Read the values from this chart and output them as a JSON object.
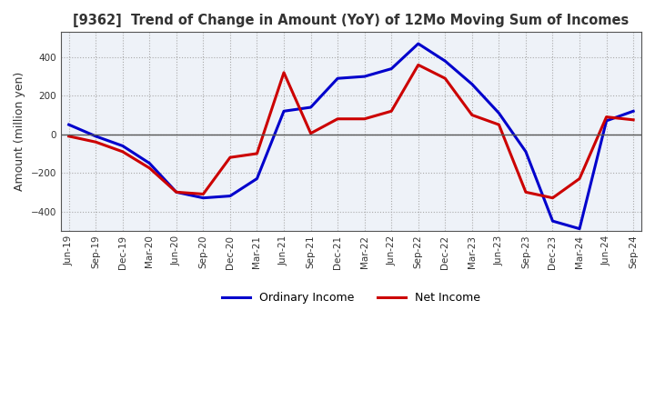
{
  "title": "[9362]  Trend of Change in Amount (YoY) of 12Mo Moving Sum of Incomes",
  "ylabel": "Amount (million yen)",
  "xlabel": "",
  "background_color": "#ffffff",
  "plot_background_color": "#eef2f8",
  "grid_color": "#aaaaaa",
  "ordinary_income_color": "#0000cc",
  "net_income_color": "#cc0000",
  "x_labels": [
    "Jun-19",
    "Sep-19",
    "Dec-19",
    "Mar-20",
    "Jun-20",
    "Sep-20",
    "Dec-20",
    "Mar-21",
    "Jun-21",
    "Sep-21",
    "Dec-21",
    "Mar-22",
    "Jun-22",
    "Sep-22",
    "Dec-22",
    "Mar-23",
    "Jun-23",
    "Sep-23",
    "Dec-23",
    "Mar-24",
    "Jun-24",
    "Sep-24"
  ],
  "ordinary_income": [
    50,
    -10,
    -60,
    -150,
    -300,
    -330,
    -320,
    -230,
    120,
    140,
    290,
    300,
    340,
    470,
    380,
    260,
    110,
    -90,
    -450,
    -490,
    70,
    120
  ],
  "net_income": [
    -10,
    -40,
    -90,
    -175,
    -300,
    -310,
    -120,
    -100,
    320,
    5,
    80,
    80,
    120,
    360,
    290,
    100,
    50,
    -300,
    -330,
    -230,
    90,
    75
  ],
  "ylim": [
    -500,
    530
  ],
  "yticks": [
    -400,
    -200,
    0,
    200,
    400
  ],
  "legend_ordinary": "Ordinary Income",
  "legend_net": "Net Income"
}
